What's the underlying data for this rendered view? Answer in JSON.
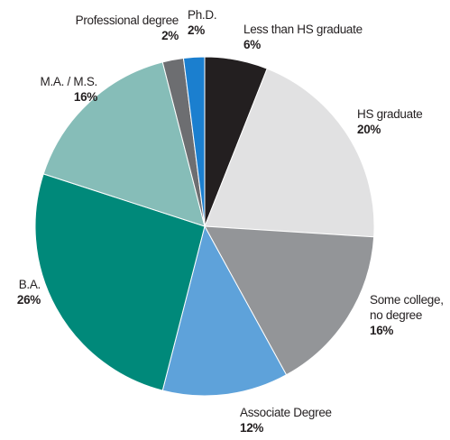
{
  "chart_data": {
    "type": "pie",
    "categories": [
      "Less than HS graduate",
      "HS graduate",
      "Some college, no degree",
      "Associate Degree",
      "B.A.",
      "M.A. / M.S.",
      "Professional degree",
      "Ph.D."
    ],
    "values": [
      6,
      20,
      16,
      12,
      26,
      16,
      2,
      2
    ],
    "value_labels": [
      "6%",
      "20%",
      "16%",
      "12%",
      "26%",
      "16%",
      "2%",
      "2%"
    ],
    "colors": [
      "#231f20",
      "#e1e1e2",
      "#939598",
      "#5ea2da",
      "#00897a",
      "#86bdb8",
      "#6d6e71",
      "#1b7fcf"
    ]
  }
}
